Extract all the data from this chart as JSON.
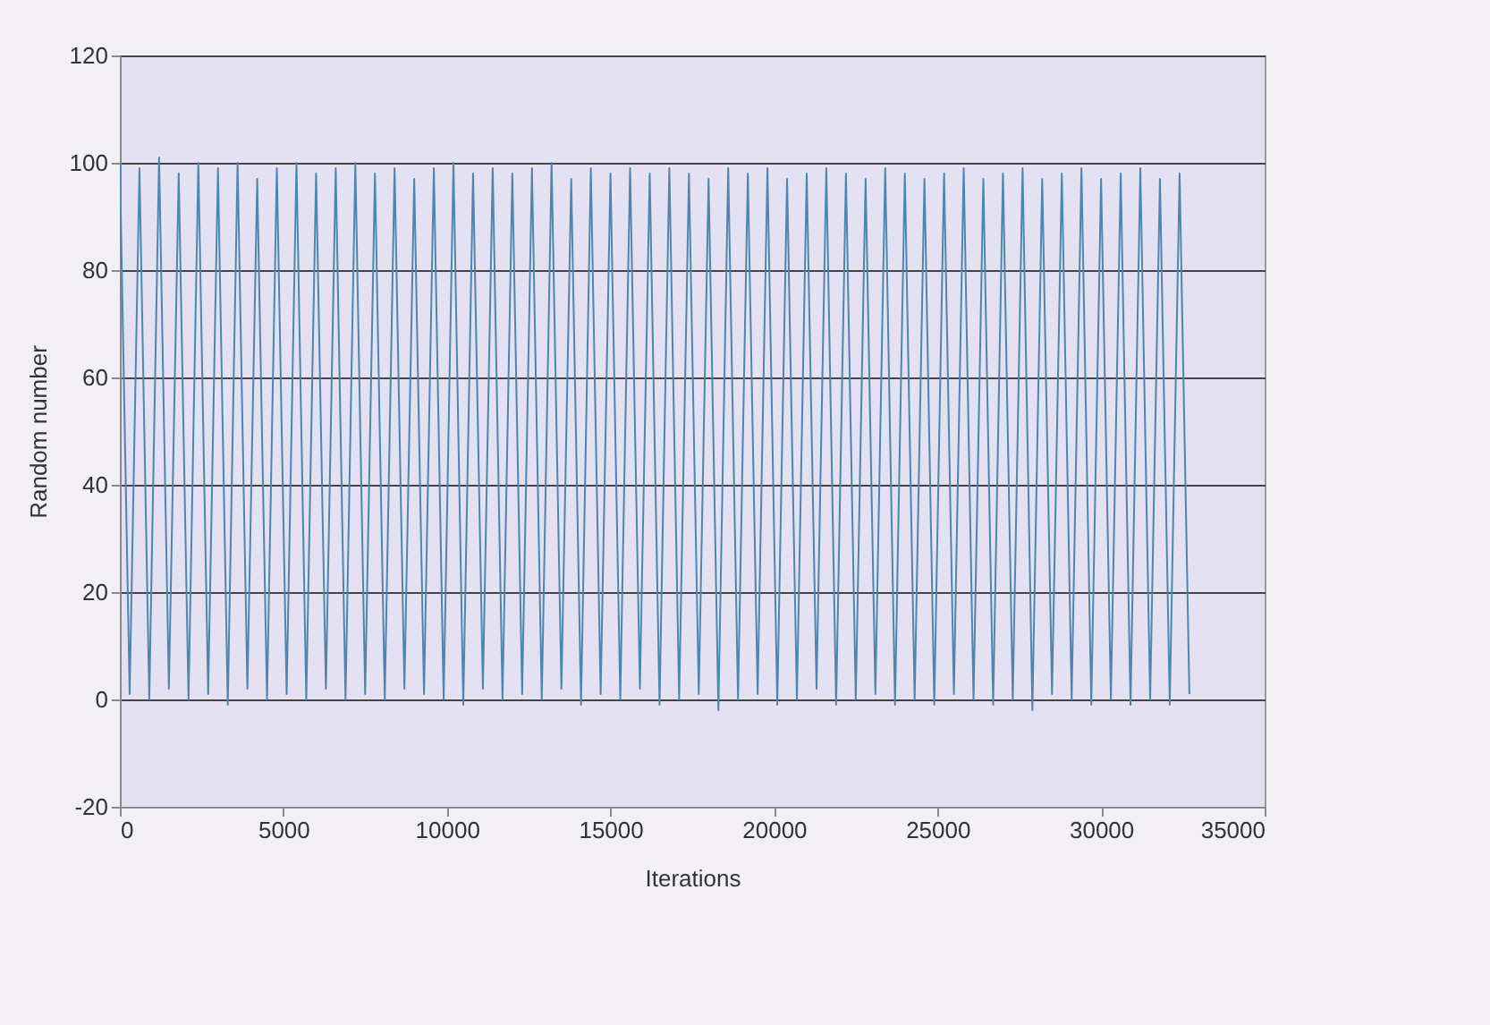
{
  "chart_data": {
    "type": "line",
    "xlabel": "Iterations",
    "ylabel": "Random number",
    "xlim": [
      0,
      35000
    ],
    "xticks": [
      0,
      5000,
      10000,
      15000,
      20000,
      25000,
      30000,
      35000
    ],
    "ylim": [
      -20,
      120
    ],
    "yticks": [
      -20,
      0,
      20,
      40,
      60,
      80,
      100,
      120
    ],
    "grid": "y",
    "series": [
      {
        "color": "#4f86b0",
        "x": [
          0,
          300,
          600,
          900,
          1200,
          1500,
          1800,
          2100,
          2400,
          2700,
          3000,
          3300,
          3600,
          3900,
          4200,
          4500,
          4800,
          5100,
          5400,
          5700,
          6000,
          6300,
          6600,
          6900,
          7200,
          7500,
          7800,
          8100,
          8400,
          8700,
          9000,
          9300,
          9600,
          9900,
          10200,
          10500,
          10800,
          11100,
          11400,
          11700,
          12000,
          12300,
          12600,
          12900,
          13200,
          13500,
          13800,
          14100,
          14400,
          14700,
          15000,
          15300,
          15600,
          15900,
          16200,
          16500,
          16800,
          17100,
          17400,
          17700,
          18000,
          18300,
          18600,
          18900,
          19200,
          19500,
          19800,
          20100,
          20400,
          20700,
          21000,
          21300,
          21600,
          21900,
          22200,
          22500,
          22800,
          23100,
          23400,
          23700,
          24000,
          24300,
          24600,
          24900,
          25200,
          25500,
          25800,
          26100,
          26400,
          26700,
          27000,
          27300,
          27600,
          27900,
          28200,
          28500,
          28800,
          29100,
          29400,
          29700,
          30000,
          30300,
          30600,
          30900,
          31200,
          31500,
          31800,
          32100,
          32400,
          32700
        ],
        "values": [
          100,
          1,
          99,
          0,
          101,
          2,
          98,
          0,
          100,
          1,
          99,
          -1,
          100,
          2,
          97,
          0,
          99,
          1,
          100,
          0,
          98,
          2,
          99,
          0,
          100,
          1,
          98,
          0,
          99,
          2,
          97,
          1,
          99,
          0,
          100,
          -1,
          98,
          2,
          99,
          0,
          98,
          1,
          99,
          0,
          100,
          2,
          97,
          -1,
          99,
          1,
          98,
          0,
          99,
          2,
          98,
          -1,
          99,
          0,
          98,
          1,
          97,
          -2,
          99,
          0,
          98,
          1,
          99,
          -1,
          97,
          0,
          98,
          2,
          99,
          -1,
          98,
          0,
          97,
          1,
          99,
          -1,
          98,
          0,
          97,
          -1,
          98,
          1,
          99,
          0,
          97,
          -1,
          98,
          0,
          99,
          -2,
          97,
          1,
          98,
          0,
          99,
          -1,
          97,
          0,
          98,
          -1,
          99,
          0,
          97,
          -1,
          98,
          1
        ]
      }
    ]
  }
}
